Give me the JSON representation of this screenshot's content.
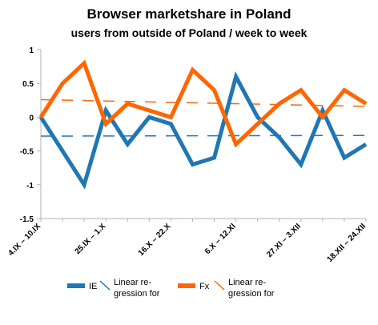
{
  "chart_data": {
    "type": "line",
    "title": "Browser marketshare in Poland",
    "subtitle": "users from outside of Poland / week to week",
    "ylim": [
      -1.5,
      1
    ],
    "yticks": [
      "1",
      "0.5",
      "0",
      "-0.5",
      "-1",
      "-1.5"
    ],
    "ytick_values": [
      1,
      0.5,
      0,
      -0.5,
      -1,
      -1.5
    ],
    "x_tick_labels": [
      "4.IX – 10.IX",
      "25.IX – 1.X",
      "16.X – 22.X",
      "6.X – 12.XI",
      "27.XI – 3.XII",
      "18.XII – 24.XII"
    ],
    "x_tick_indices": [
      0,
      3,
      6,
      9,
      12,
      15
    ],
    "num_points": 16,
    "series": [
      {
        "name": "IE",
        "color": "#1f77b4",
        "values": [
          0,
          -0.5,
          -1,
          0.1,
          -0.4,
          0,
          -0.1,
          -0.7,
          -0.6,
          0.6,
          0,
          -0.3,
          -0.7,
          0.1,
          -0.6,
          -0.4
        ]
      },
      {
        "name": "Fx",
        "color": "#ff6600",
        "values": [
          0,
          0.5,
          0.8,
          -0.1,
          0.2,
          0.1,
          0,
          0.7,
          0.4,
          -0.4,
          -0.1,
          0.2,
          0.4,
          0,
          0.4,
          0.2
        ]
      }
    ],
    "trendlines": [
      {
        "name": "Linear regression for IE",
        "color": "#1f77b4",
        "from": -0.28,
        "to": -0.27
      },
      {
        "name": "Linear regression for Fx",
        "color": "#ff6600",
        "from": 0.26,
        "to": 0.16
      }
    ],
    "legend": [
      {
        "label": "IE",
        "kind": "line",
        "color": "#1f77b4"
      },
      {
        "label": "Linear re-\ngression for",
        "kind": "slash",
        "color": "#1f77b4"
      },
      {
        "label": "Fx",
        "kind": "line",
        "color": "#ff6600"
      },
      {
        "label": "Linear re-\ngression for",
        "kind": "slash",
        "color": "#ff6600"
      }
    ],
    "legend_position": "bottom",
    "grid": false
  }
}
